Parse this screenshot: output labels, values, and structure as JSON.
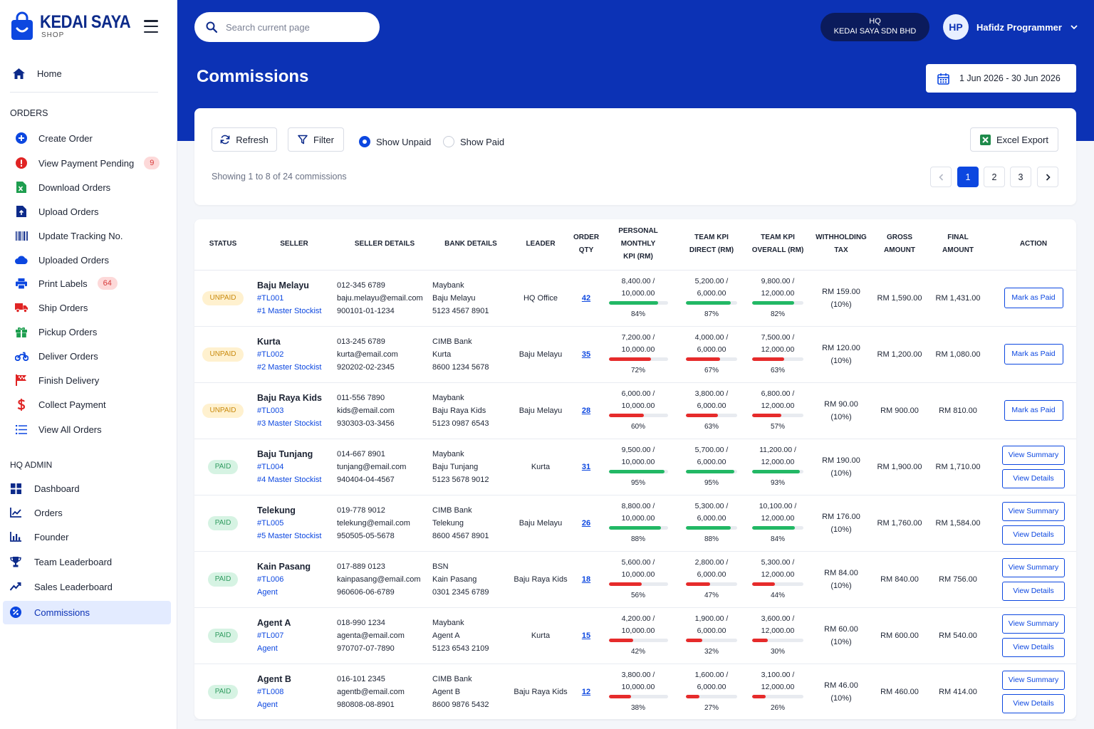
{
  "brand": {
    "title": "KEDAI SAYA",
    "subtitle": "SHOP"
  },
  "sidebar": {
    "home": "Home",
    "orders_title": "ORDERS",
    "orders_items": [
      {
        "label": "Create Order",
        "icon": "plus-circle-icon",
        "color": "#0c47e0"
      },
      {
        "label": "View Payment Pending",
        "icon": "alert-circle-icon",
        "color": "#e02424",
        "badge": "9"
      },
      {
        "label": "Download Orders",
        "icon": "excel-icon",
        "color": "#1e9e4f"
      },
      {
        "label": "Upload Orders",
        "icon": "upload-file-icon",
        "color": "#0c2a8a"
      },
      {
        "label": "Update Tracking No.",
        "icon": "barcode-icon",
        "color": "#0c2a8a"
      },
      {
        "label": "Uploaded Orders",
        "icon": "cloud-icon",
        "color": "#0c47e0"
      },
      {
        "label": "Print Labels",
        "icon": "printer-icon",
        "color": "#0c47e0",
        "badge": "64"
      },
      {
        "label": "Ship Orders",
        "icon": "truck-icon",
        "color": "#e02424"
      },
      {
        "label": "Pickup Orders",
        "icon": "gift-icon",
        "color": "#1e9e4f"
      },
      {
        "label": "Deliver Orders",
        "icon": "motorcycle-icon",
        "color": "#0c47e0"
      },
      {
        "label": "Finish Delivery",
        "icon": "flag-icon",
        "color": "#e02424"
      },
      {
        "label": "Collect Payment",
        "icon": "dollar-icon",
        "color": "#e02424"
      },
      {
        "label": "View All Orders",
        "icon": "list-icon",
        "color": "#0c47e0"
      }
    ],
    "admin_title": "HQ ADMIN",
    "admin_items": [
      {
        "label": "Dashboard",
        "icon": "grid-icon"
      },
      {
        "label": "Orders",
        "icon": "line-chart-icon"
      },
      {
        "label": "Founder",
        "icon": "bar-chart-icon"
      },
      {
        "label": "Team Leaderboard",
        "icon": "trophy-icon"
      },
      {
        "label": "Sales Leaderboard",
        "icon": "trend-icon"
      },
      {
        "label": "Commissions",
        "icon": "percent-icon",
        "active": true
      }
    ]
  },
  "header": {
    "search_placeholder": "Search current page",
    "hq_line1": "HQ",
    "hq_line2": "KEDAI SAYA SDN BHD",
    "user_initials": "HP",
    "user_name": "Hafidz Programmer",
    "page_title": "Commissions",
    "date_range": "1 Jun 2026 - 30 Jun 2026"
  },
  "toolbar": {
    "refresh": "Refresh",
    "filter": "Filter",
    "show_unpaid": "Show Unpaid",
    "show_paid": "Show Paid",
    "selected": "unpaid",
    "excel": "Excel Export",
    "showing": "Showing 1 to 8 of 24 commissions",
    "pages": [
      "1",
      "2",
      "3"
    ],
    "current_page": "1"
  },
  "table": {
    "headers": {
      "status": "STATUS",
      "seller": "SELLER",
      "seller_details": "SELLER DETAILS",
      "bank_details": "BANK DETAILS",
      "leader": "LEADER",
      "order_qty_1": "ORDER",
      "order_qty_2": "QTY",
      "pkpi_1": "PERSONAL MONTHLY",
      "pkpi_2": "KPI (RM)",
      "tkd_1": "TEAM KPI",
      "tkd_2": "DIRECT (RM)",
      "tko_1": "TEAM KPI",
      "tko_2": "OVERALL (RM)",
      "wt_1": "WITHHOLDING",
      "wt_2": "TAX",
      "gross_1": "GROSS",
      "gross_2": "AMOUNT",
      "final_1": "FINAL",
      "final_2": "AMOUNT",
      "action": "ACTION"
    },
    "rows": [
      {
        "status": "UNPAID",
        "name": "Baju Melayu",
        "code": "#TL001",
        "tier": "#1 Master Stockist",
        "phone": "012-345 6789",
        "email": "baju.melayu@email.com",
        "ic": "900101-01-1234",
        "bank": "Maybank",
        "acct_name": "Baju Melayu",
        "acct_no": "5123 4567 8901",
        "leader": "HQ Office",
        "qty": "42",
        "pk_a": "8,400.00 /",
        "pk_b": "10,000.00",
        "pk_p": 84,
        "td_a": "5,200.00 /",
        "td_b": "6,000.00",
        "td_p": 87,
        "to_a": "9,800.00 /",
        "to_b": "12,000.00",
        "to_p": 82,
        "tax": "RM 159.00",
        "tax_rate": "(10%)",
        "gross": "RM 1,590.00",
        "final": "RM 1,431.00",
        "actions": [
          "Mark as Paid"
        ]
      },
      {
        "status": "UNPAID",
        "name": "Kurta",
        "code": "#TL002",
        "tier": "#2 Master Stockist",
        "phone": "013-245 6789",
        "email": "kurta@email.com",
        "ic": "920202-02-2345",
        "bank": "CIMB Bank",
        "acct_name": "Kurta",
        "acct_no": "8600 1234 5678",
        "leader": "Baju Melayu",
        "qty": "35",
        "pk_a": "7,200.00 /",
        "pk_b": "10,000.00",
        "pk_p": 72,
        "td_a": "4,000.00 /",
        "td_b": "6,000.00",
        "td_p": 67,
        "to_a": "7,500.00 /",
        "to_b": "12,000.00",
        "to_p": 63,
        "tax": "RM 120.00",
        "tax_rate": "(10%)",
        "gross": "RM 1,200.00",
        "final": "RM 1,080.00",
        "actions": [
          "Mark as Paid"
        ]
      },
      {
        "status": "UNPAID",
        "name": "Baju Raya Kids",
        "code": "#TL003",
        "tier": "#3 Master Stockist",
        "phone": "011-556 7890",
        "email": "kids@email.com",
        "ic": "930303-03-3456",
        "bank": "Maybank",
        "acct_name": "Baju Raya Kids",
        "acct_no": "5123 0987 6543",
        "leader": "Baju Melayu",
        "qty": "28",
        "pk_a": "6,000.00 /",
        "pk_b": "10,000.00",
        "pk_p": 60,
        "td_a": "3,800.00 /",
        "td_b": "6,000.00",
        "td_p": 63,
        "to_a": "6,800.00 /",
        "to_b": "12,000.00",
        "to_p": 57,
        "tax": "RM 90.00",
        "tax_rate": "(10%)",
        "gross": "RM 900.00",
        "final": "RM 810.00",
        "actions": [
          "Mark as Paid"
        ]
      },
      {
        "status": "PAID",
        "name": "Baju Tunjang",
        "code": "#TL004",
        "tier": "#4 Master Stockist",
        "phone": "014-667 8901",
        "email": "tunjang@email.com",
        "ic": "940404-04-4567",
        "bank": "Maybank",
        "acct_name": "Baju Tunjang",
        "acct_no": "5123 5678 9012",
        "leader": "Kurta",
        "qty": "31",
        "pk_a": "9,500.00 /",
        "pk_b": "10,000.00",
        "pk_p": 95,
        "td_a": "5,700.00 /",
        "td_b": "6,000.00",
        "td_p": 95,
        "to_a": "11,200.00 /",
        "to_b": "12,000.00",
        "to_p": 93,
        "tax": "RM 190.00",
        "tax_rate": "(10%)",
        "gross": "RM 1,900.00",
        "final": "RM 1,710.00",
        "actions": [
          "View Summary",
          "View Details"
        ]
      },
      {
        "status": "PAID",
        "name": "Telekung",
        "code": "#TL005",
        "tier": "#5 Master Stockist",
        "phone": "019-778 9012",
        "email": "telekung@email.com",
        "ic": "950505-05-5678",
        "bank": "CIMB Bank",
        "acct_name": "Telekung",
        "acct_no": "8600 4567 8901",
        "leader": "Baju Melayu",
        "qty": "26",
        "pk_a": "8,800.00 /",
        "pk_b": "10,000.00",
        "pk_p": 88,
        "td_a": "5,300.00 /",
        "td_b": "6,000.00",
        "td_p": 88,
        "to_a": "10,100.00 /",
        "to_b": "12,000.00",
        "to_p": 84,
        "tax": "RM 176.00",
        "tax_rate": "(10%)",
        "gross": "RM 1,760.00",
        "final": "RM 1,584.00",
        "actions": [
          "View Summary",
          "View Details"
        ]
      },
      {
        "status": "PAID",
        "name": "Kain Pasang",
        "code": "#TL006",
        "tier": "Agent",
        "phone": "017-889 0123",
        "email": "kainpasang@email.com",
        "ic": "960606-06-6789",
        "bank": "BSN",
        "acct_name": "Kain Pasang",
        "acct_no": "0301 2345 6789",
        "leader": "Baju Raya Kids",
        "qty": "18",
        "pk_a": "5,600.00 /",
        "pk_b": "10,000.00",
        "pk_p": 56,
        "td_a": "2,800.00 /",
        "td_b": "6,000.00",
        "td_p": 47,
        "to_a": "5,300.00 /",
        "to_b": "12,000.00",
        "to_p": 44,
        "tax": "RM 84.00",
        "tax_rate": "(10%)",
        "gross": "RM 840.00",
        "final": "RM 756.00",
        "actions": [
          "View Summary",
          "View Details"
        ]
      },
      {
        "status": "PAID",
        "name": "Agent A",
        "code": "#TL007",
        "tier": "Agent",
        "phone": "018-990 1234",
        "email": "agenta@email.com",
        "ic": "970707-07-7890",
        "bank": "Maybank",
        "acct_name": "Agent A",
        "acct_no": "5123 6543 2109",
        "leader": "Kurta",
        "qty": "15",
        "pk_a": "4,200.00 /",
        "pk_b": "10,000.00",
        "pk_p": 42,
        "td_a": "1,900.00 /",
        "td_b": "6,000.00",
        "td_p": 32,
        "to_a": "3,600.00 /",
        "to_b": "12,000.00",
        "to_p": 30,
        "tax": "RM 60.00",
        "tax_rate": "(10%)",
        "gross": "RM 600.00",
        "final": "RM 540.00",
        "actions": [
          "View Summary",
          "View Details"
        ]
      },
      {
        "status": "PAID",
        "name": "Agent B",
        "code": "#TL008",
        "tier": "Agent",
        "phone": "016-101 2345",
        "email": "agentb@email.com",
        "ic": "980808-08-8901",
        "bank": "CIMB Bank",
        "acct_name": "Agent B",
        "acct_no": "8600 9876 5432",
        "leader": "Baju Raya Kids",
        "qty": "12",
        "pk_a": "3,800.00 /",
        "pk_b": "10,000.00",
        "pk_p": 38,
        "td_a": "1,600.00 /",
        "td_b": "6,000.00",
        "td_p": 27,
        "to_a": "3,100.00 /",
        "to_b": "12,000.00",
        "to_p": 26,
        "tax": "RM 46.00",
        "tax_rate": "(10%)",
        "gross": "RM 460.00",
        "final": "RM 414.00",
        "actions": [
          "View Summary",
          "View Details"
        ]
      }
    ]
  },
  "colors": {
    "primary": "#0c32b5",
    "accent": "#0c47e0",
    "good": "#22b865",
    "bad": "#e62b2b",
    "unpaid_badge": "#fff1cf",
    "paid_badge": "#d6f3e3"
  }
}
